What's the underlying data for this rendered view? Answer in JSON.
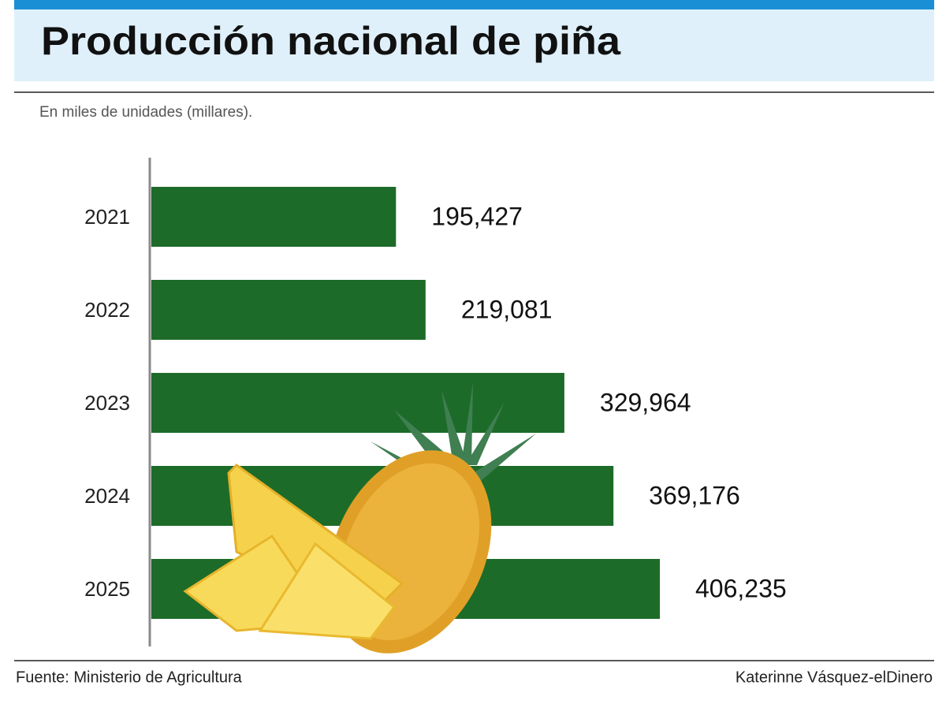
{
  "chart_data": {
    "type": "bar",
    "orientation": "horizontal",
    "title": "Producción nacional de piña",
    "subtitle": "En miles de unidades (millares).",
    "categories": [
      "2021",
      "2022",
      "2023",
      "2024",
      "2025"
    ],
    "values": [
      195427,
      219081,
      329964,
      369176,
      406235
    ],
    "value_labels": [
      "195,427",
      "219,081",
      "329,964",
      "369,176",
      "406,235"
    ],
    "color": "#1d6b28",
    "source": "Fuente: Ministerio de Agricultura",
    "credit": "Katerinne Vásquez-elDinero"
  }
}
